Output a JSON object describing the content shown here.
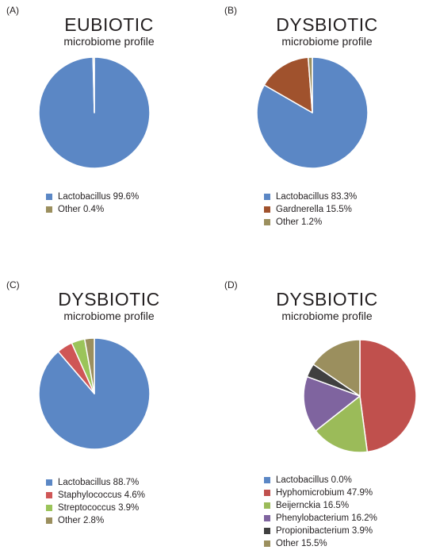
{
  "chart_data": [
    {
      "type": "pie",
      "panel_label": "(A)",
      "title": "EUBIOTIC",
      "subtitle": "microbiome profile",
      "slices": [
        {
          "label": "Lactobacillus 99.6%",
          "value": 99.6,
          "color": "#5b87c5"
        },
        {
          "label": "Other 0.4%",
          "value": 0.4,
          "color": "#9b8f5e"
        }
      ]
    },
    {
      "type": "pie",
      "panel_label": "(B)",
      "title": "DYSBIOTIC",
      "subtitle": "microbiome profile",
      "slices": [
        {
          "label": "Lactobacillus 83.3%",
          "value": 83.3,
          "color": "#5b87c5"
        },
        {
          "label": "Gardnerella 15.5%",
          "value": 15.5,
          "color": "#a0522d"
        },
        {
          "label": "Other 1.2%",
          "value": 1.2,
          "color": "#9b8f5e"
        }
      ]
    },
    {
      "type": "pie",
      "panel_label": "(C)",
      "title": "DYSBIOTIC",
      "subtitle": "microbiome profile",
      "slices": [
        {
          "label": "Lactobacillus 88.7%",
          "value": 88.7,
          "color": "#5b87c5"
        },
        {
          "label": "Staphylococcus 4.6%",
          "value": 4.6,
          "color": "#cf5656"
        },
        {
          "label": "Streptococcus 3.9%",
          "value": 3.9,
          "color": "#9bc45a"
        },
        {
          "label": "Other 2.8%",
          "value": 2.8,
          "color": "#9b8f5e"
        }
      ]
    },
    {
      "type": "pie",
      "panel_label": "(D)",
      "title": "DYSBIOTIC",
      "subtitle": "microbiome profile",
      "slices": [
        {
          "label": "Lactobacillus 0.0%",
          "value": 0.0,
          "color": "#5b87c5"
        },
        {
          "label": "Hyphomicrobium 47.9%",
          "value": 47.9,
          "color": "#c0504d"
        },
        {
          "label": "Beijernckia 16.5%",
          "value": 16.5,
          "color": "#9bbb59"
        },
        {
          "label": "Phenylobacterium 16.2%",
          "value": 16.2,
          "color": "#7f649f"
        },
        {
          "label": "Propionibacterium 3.9%",
          "value": 3.9,
          "color": "#404040"
        },
        {
          "label": "Other 15.5%",
          "value": 15.5,
          "color": "#9b8f5e"
        }
      ]
    }
  ]
}
